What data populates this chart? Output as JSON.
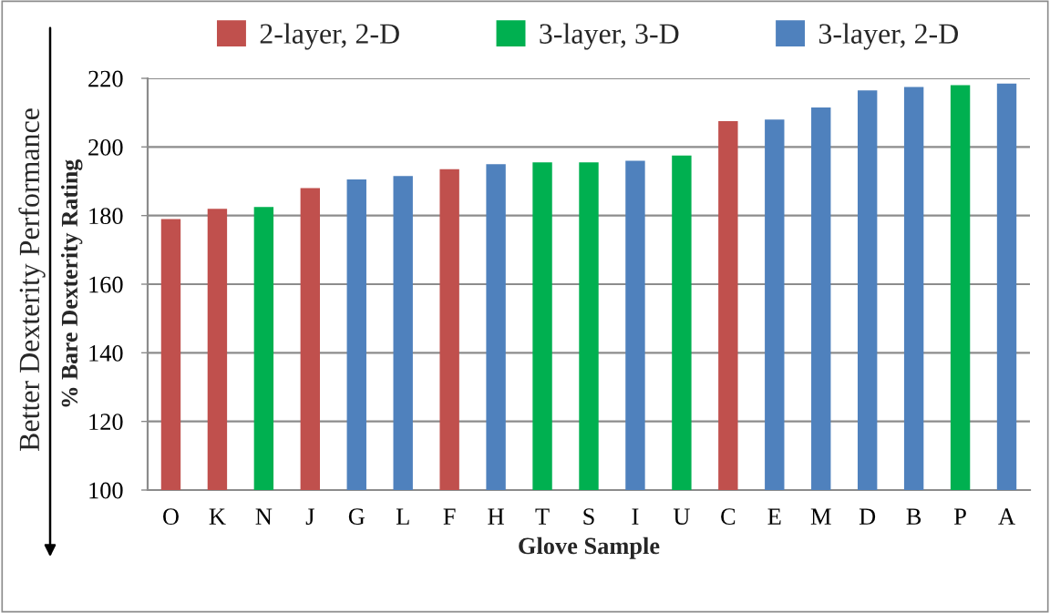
{
  "chart_data": {
    "type": "bar",
    "xlabel": "Glove Sample",
    "ylabel": "% Bare Dexterity Rating",
    "annotations": [
      "Better Dexterity Performance"
    ],
    "categories": [
      "O",
      "K",
      "N",
      "J",
      "G",
      "L",
      "F",
      "H",
      "T",
      "S",
      "I",
      "U",
      "C",
      "E",
      "M",
      "D",
      "B",
      "P",
      "A"
    ],
    "stacked": true,
    "series": [
      {
        "name": "2-layer, 2-D",
        "color": "#c0504d",
        "values": [
          179,
          182,
          null,
          188,
          null,
          null,
          193.5,
          null,
          null,
          null,
          null,
          null,
          207.5,
          null,
          null,
          null,
          null,
          null,
          null
        ]
      },
      {
        "name": "3-layer, 3-D",
        "color": "#00b050",
        "values": [
          null,
          null,
          182.5,
          null,
          null,
          null,
          null,
          null,
          195.5,
          195.5,
          null,
          197.5,
          null,
          null,
          null,
          null,
          null,
          218,
          null
        ]
      },
      {
        "name": "3-layer, 2-D",
        "color": "#4f81bd",
        "values": [
          null,
          null,
          null,
          null,
          190.5,
          191.5,
          null,
          195,
          null,
          null,
          196,
          null,
          null,
          208,
          211.5,
          216.5,
          217.5,
          null,
          218.5
        ]
      }
    ],
    "ylim": [
      100,
      220
    ],
    "yticks": [
      100,
      120,
      140,
      160,
      180,
      200,
      220
    ],
    "grid": "y",
    "legend": "top"
  }
}
